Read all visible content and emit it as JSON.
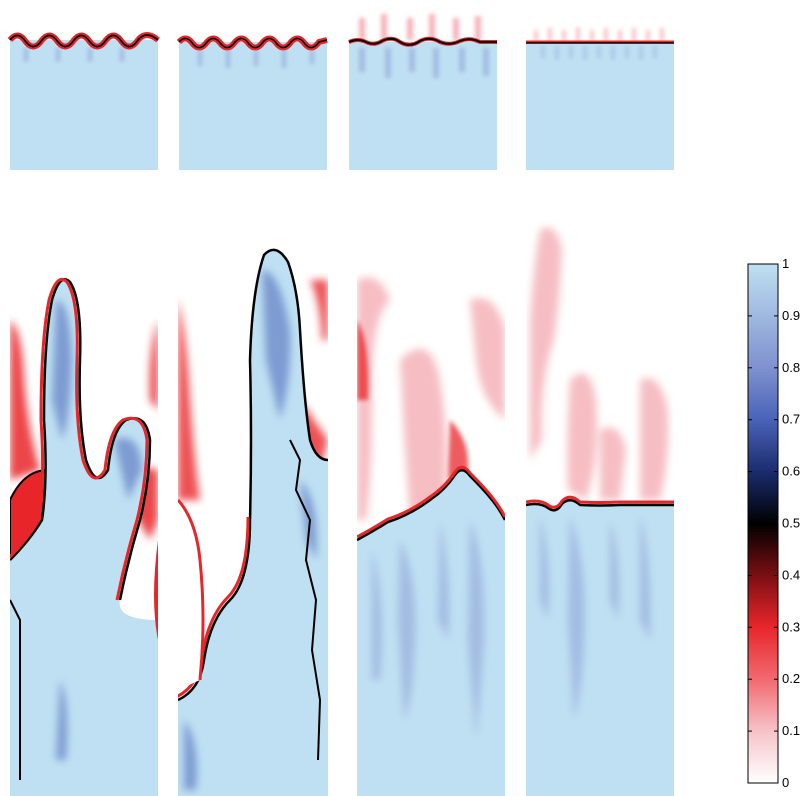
{
  "figure": {
    "colors": {
      "background": "#ffffff",
      "fluid_light": "#bfe0f2",
      "fluid_mid": "#4a63b8",
      "interface": "#000000",
      "heavy_red": "#e8262a",
      "light_red": "#f6c3c8"
    },
    "colorbar": {
      "ticks": [
        "1",
        "0.9",
        "0.8",
        "0.7",
        "0.6",
        "0.5",
        "0.4",
        "0.3",
        "0.2",
        "0.1",
        "0"
      ],
      "colors_top_to_bottom": [
        "#bfe0f2",
        "#9fb8e0",
        "#7f91cf",
        "#4a63b8",
        "#1b2c6e",
        "#000000",
        "#7a0f12",
        "#e8262a",
        "#f16a70",
        "#f6c3c8",
        "#ffffff"
      ]
    }
  }
}
